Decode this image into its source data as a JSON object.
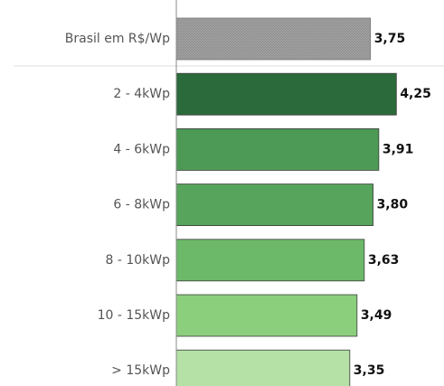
{
  "chart_data": {
    "type": "bar",
    "orientation": "horizontal",
    "categories": [
      "Brasil em R$/Wp",
      "2 - 4kWp",
      "4 - 6kWp",
      "6 - 8kWp",
      "8 - 10kWp",
      "10 - 15kWp",
      "> 15kWp"
    ],
    "values": [
      3.75,
      4.25,
      3.91,
      3.8,
      3.63,
      3.49,
      3.35
    ],
    "value_labels": [
      "3,75",
      "4,25",
      "3,91",
      "3,80",
      "3,63",
      "3,49",
      "3,35"
    ],
    "colors": [
      "#a3a3a3",
      "#2b6a3b",
      "#4c9a55",
      "#57a45c",
      "#6cb969",
      "#8bcf7d",
      "#b5e1a6"
    ],
    "xlim": [
      0,
      5.17
    ]
  }
}
